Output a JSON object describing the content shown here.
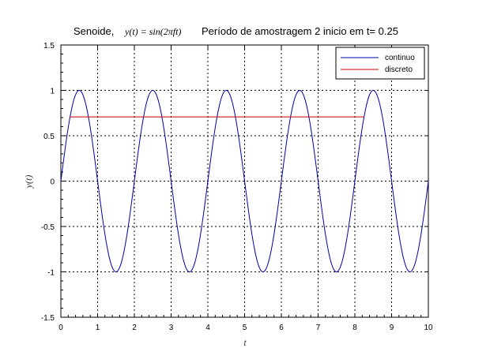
{
  "chart_data": {
    "type": "line",
    "title": {
      "prefix": "Senoide,",
      "formula": "y(t) = sin(2πft)",
      "suffix": "Período de amostragem 2 inicio em t= 0.25"
    },
    "xlabel": "t",
    "ylabel": "y(t)",
    "xlim": [
      0,
      10
    ],
    "ylim": [
      -1.5,
      1.5
    ],
    "xticks": [
      "0",
      "1",
      "2",
      "3",
      "4",
      "5",
      "6",
      "7",
      "8",
      "9",
      "10"
    ],
    "yticks": [
      "-1.5",
      "-1",
      "-0.5",
      "0",
      "0.5",
      "1",
      "1.5"
    ],
    "grid": true,
    "legend_position": "top-right",
    "series": [
      {
        "name": "continuo",
        "color": "#0000aa",
        "function": "sin(2*pi*f*t)",
        "frequency": 0.5,
        "x_range": [
          0,
          10
        ]
      },
      {
        "name": "discreto",
        "color": "#cc0000",
        "x": [
          0.25,
          8.25
        ],
        "y": [
          0.7071,
          0.7071
        ]
      }
    ]
  }
}
